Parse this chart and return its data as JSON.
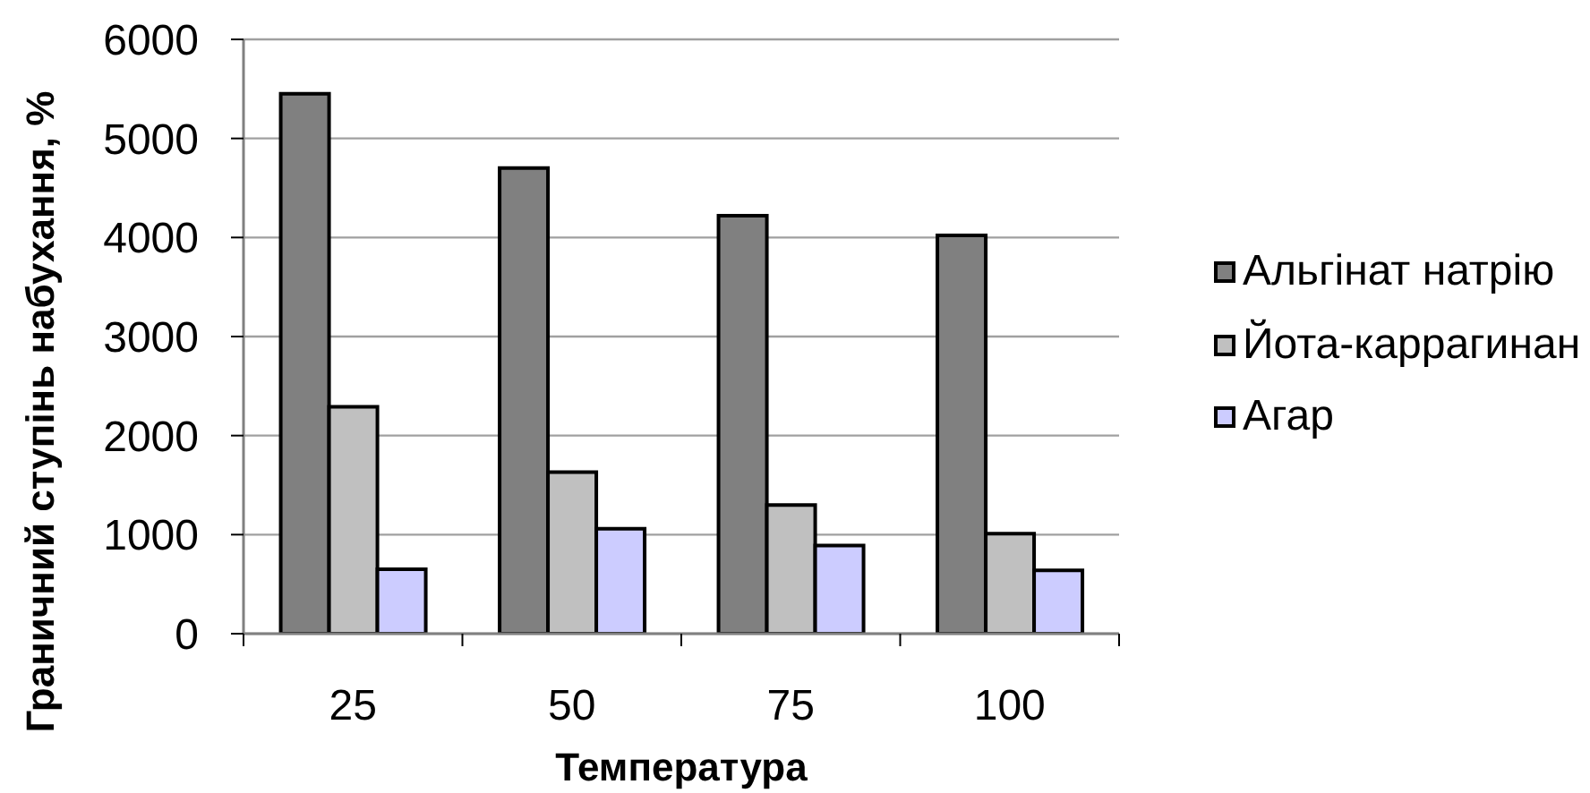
{
  "chart_data": {
    "type": "bar",
    "xlabel": "Температура",
    "ylabel": "Граничний ступінь набухання, %",
    "categories": [
      "25",
      "50",
      "75",
      "100"
    ],
    "series": [
      {
        "name": "Альгінат натрію",
        "color": "#808080",
        "values": [
          5450,
          4700,
          4220,
          4020
        ]
      },
      {
        "name": "Йота-каррагинан",
        "color": "#c0c0c0",
        "values": [
          2290,
          1630,
          1300,
          1010
        ]
      },
      {
        "name": "Агар",
        "color": "#ccccff",
        "values": [
          650,
          1060,
          890,
          640
        ]
      }
    ],
    "ylim": [
      0,
      6000
    ],
    "yticks": [
      0,
      1000,
      2000,
      3000,
      4000,
      5000,
      6000
    ],
    "grid": "y",
    "legend": "right"
  }
}
